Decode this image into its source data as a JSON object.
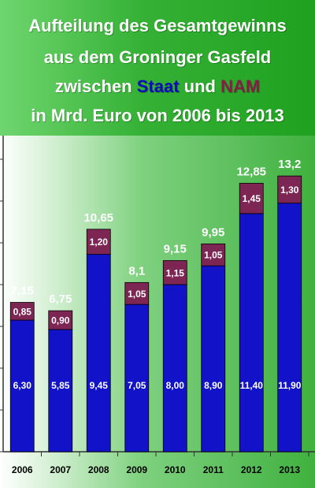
{
  "title": {
    "line1": "Aufteilung des Gesamtgewinns",
    "line2": "aus dem Groninger Gasfeld",
    "line3_a": "zwischen ",
    "line3_staat": "Staat",
    "line3_b": " und ",
    "line3_nam": "NAM",
    "line4": "in Mrd. Euro von 2006 bis 2013"
  },
  "colors": {
    "staat": "#1212c8",
    "nam": "#7d2553",
    "background_green": "#35b135"
  },
  "chart_data": {
    "type": "bar",
    "stacked": true,
    "categories": [
      "2006",
      "2007",
      "2008",
      "2009",
      "2010",
      "2011",
      "2012",
      "2013"
    ],
    "series": [
      {
        "name": "Staat",
        "values": [
          6.3,
          5.85,
          9.45,
          7.05,
          8.0,
          8.9,
          11.4,
          11.9
        ],
        "labels": [
          "6,30",
          "5,85",
          "9,45",
          "7,05",
          "8,00",
          "8,90",
          "11,40",
          "11,90"
        ]
      },
      {
        "name": "NAM",
        "values": [
          0.85,
          0.9,
          1.2,
          1.05,
          1.15,
          1.05,
          1.45,
          1.3
        ],
        "labels": [
          "0,85",
          "0,90",
          "1,20",
          "1,05",
          "1,15",
          "1,05",
          "1,45",
          "1,30"
        ]
      }
    ],
    "totals": [
      7.15,
      6.75,
      10.65,
      8.1,
      9.15,
      9.95,
      12.85,
      13.2
    ],
    "total_labels": [
      "7,15",
      "6,75",
      "10,65",
      "8,1",
      "9,15",
      "9,95",
      "12,85",
      "13,2"
    ],
    "ylim": [
      0,
      14
    ],
    "y_ticks": [
      0,
      2,
      4,
      6,
      8,
      10,
      12,
      14
    ],
    "grid": false,
    "legend": "none"
  }
}
